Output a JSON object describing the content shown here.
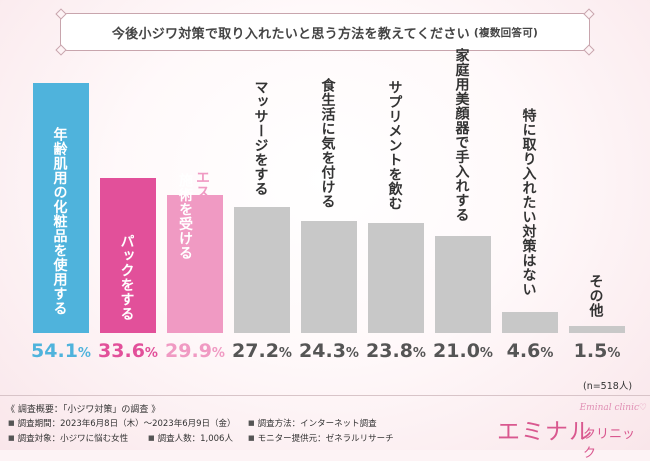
{
  "title": {
    "main": "今後小ジワ対策で取り入れたいと思う方法を教えてください",
    "note": "(複数回答可)"
  },
  "colors": {
    "blue": "#4fb3dc",
    "pink_dark": "#e2509a",
    "pink_light": "#f09ac3",
    "gray": "#c8c8c8",
    "gray_text": "#555555",
    "logo": "#d9588f"
  },
  "chart_data": {
    "type": "bar",
    "title": "今後小ジワ対策で取り入れたいと思う方法を教えてください (複数回答可)",
    "categories": [
      "年齢肌用の化粧品を使用する",
      "パックをする",
      "エステやクリニックで施術を受ける",
      "マッサージをする",
      "食生活に気を付ける",
      "サプリメントを飲む",
      "家庭用美顔器で手入れする",
      "特に取り入れたい対策はない",
      "その他"
    ],
    "labels": [
      [
        "年齢肌用の化粧品を使用する"
      ],
      [
        "パックをする"
      ],
      [
        "エステやクリニックで",
        "施術を受ける"
      ],
      [
        "マッサージをする"
      ],
      [
        "食生活に気を付ける"
      ],
      [
        "サプリメントを飲む"
      ],
      [
        "家庭用美顔器で手入れする"
      ],
      [
        "特に取り入れたい対策はない"
      ],
      [
        "その他"
      ]
    ],
    "values": [
      54.1,
      33.6,
      29.9,
      27.2,
      24.3,
      23.8,
      21.0,
      4.6,
      1.5
    ],
    "value_labels": [
      "54.1",
      "33.6",
      "29.9",
      "27.2",
      "24.3",
      "23.8",
      "21.0",
      "4.6",
      "1.5"
    ],
    "unit": "%",
    "ylim": [
      0,
      54.1
    ],
    "grid": false,
    "sample_size": "(n=518人)"
  },
  "footer": {
    "heading": "《 調査概要：「小ジワ対策」の調査 》",
    "items": [
      "調査期間：2023年6月8日（木）〜2023年6月9日（金）",
      "調査方法：インターネット調査",
      "調査対象：小ジワに悩む女性",
      "調査人数：1,006人",
      "モニター提供元：ゼネラルリサーチ"
    ]
  },
  "logo": {
    "main": "エミナル",
    "sub": "クリニック",
    "en": "Eminal clinic"
  }
}
